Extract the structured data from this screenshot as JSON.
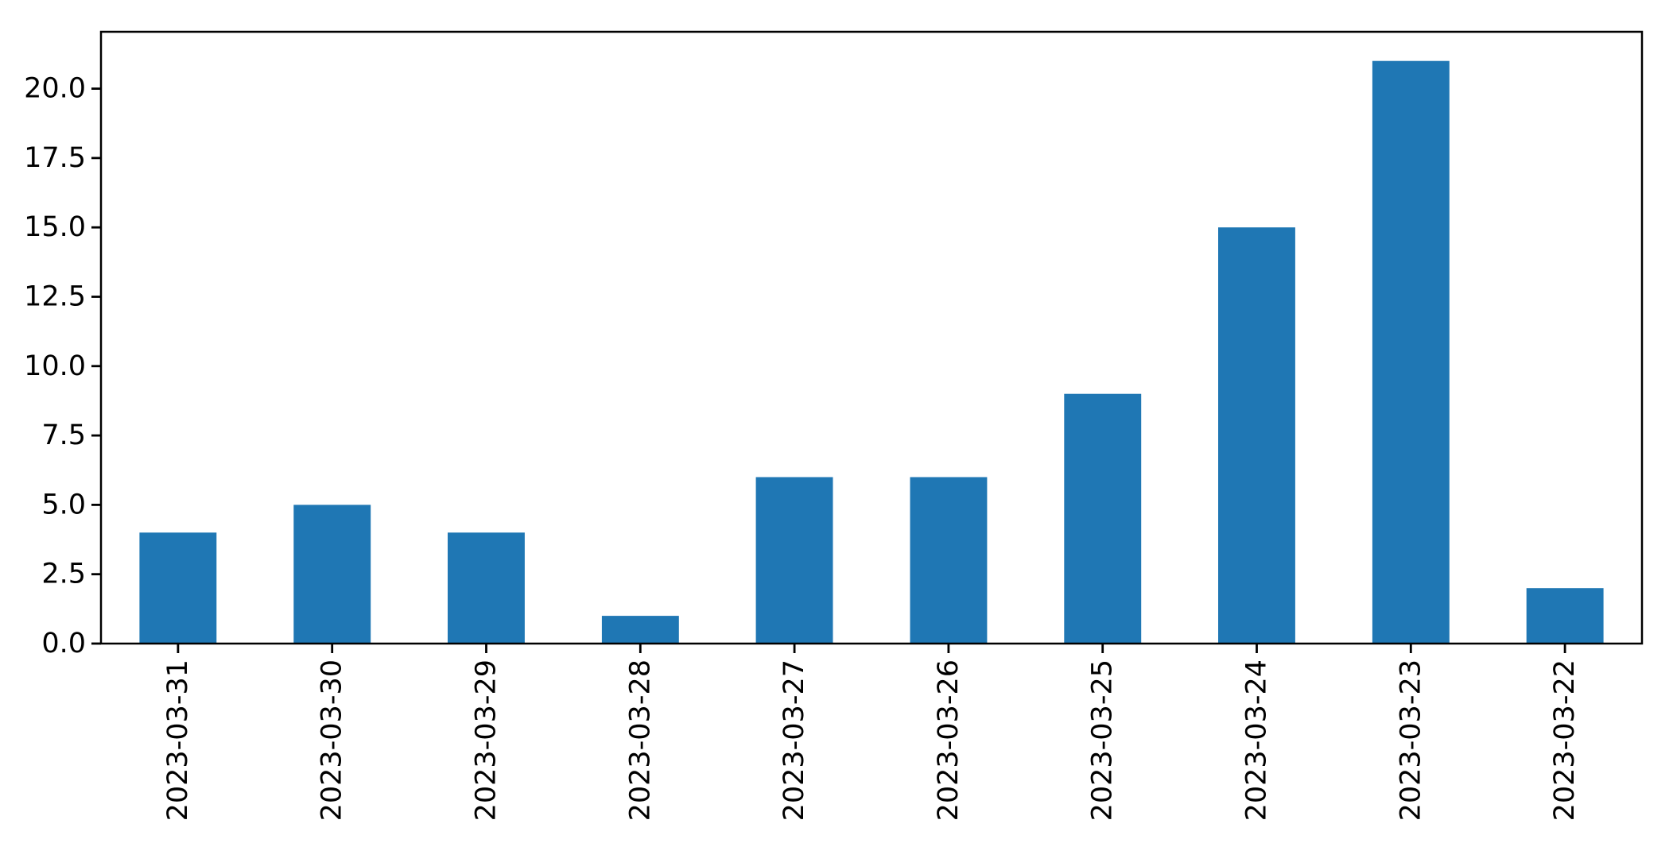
{
  "chart_data": {
    "type": "bar",
    "title": "",
    "xlabel": "",
    "ylabel": "",
    "categories": [
      "2023-03-31",
      "2023-03-30",
      "2023-03-29",
      "2023-03-28",
      "2023-03-27",
      "2023-03-26",
      "2023-03-25",
      "2023-03-24",
      "2023-03-23",
      "2023-03-22"
    ],
    "values": [
      4,
      5,
      4,
      1,
      6,
      6,
      9,
      15,
      21,
      2
    ],
    "ylim": [
      0,
      22.05
    ],
    "yticks": [
      0,
      2.5,
      5,
      7.5,
      10,
      12.5,
      15,
      17.5,
      20
    ],
    "ytick_labels": [
      "0.0",
      "2.5",
      "5.0",
      "7.5",
      "10.0",
      "12.5",
      "15.0",
      "17.5",
      "20.0"
    ],
    "x_tick_rotation_deg": 90,
    "bar_width_fraction": 0.5,
    "grid": false,
    "legend": null,
    "colors": {
      "bar": "#1f77b4",
      "spine": "#000000",
      "tick": "#000000",
      "tick_label": "#000000",
      "background": "#ffffff"
    }
  }
}
